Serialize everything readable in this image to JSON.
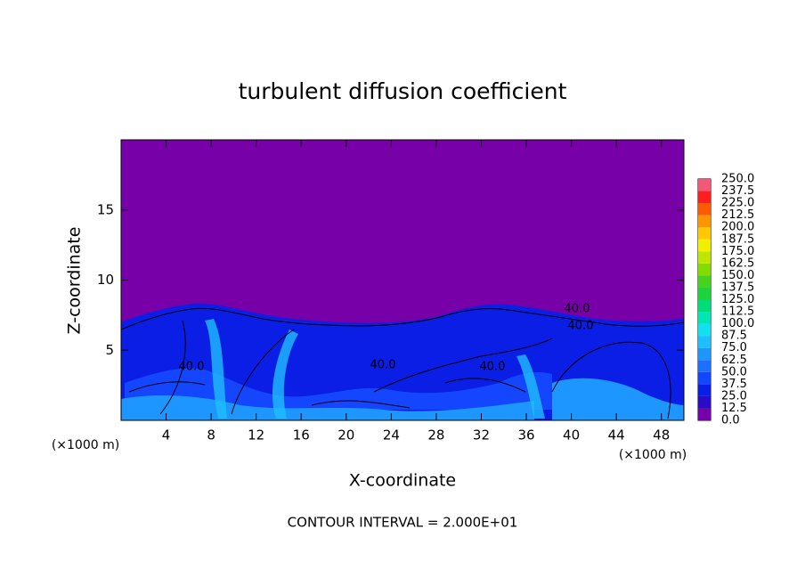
{
  "chart_data": {
    "type": "contour",
    "title": "turbulent diffusion coefficient",
    "xlabel": "X-coordinate",
    "ylabel": "Z-coordinate",
    "x_unit": "(×1000 m)",
    "footer": "CONTOUR INTERVAL = 2.000E+01",
    "xlim": [
      0,
      50
    ],
    "ylim": [
      0,
      20
    ],
    "xticks": [
      4,
      8,
      12,
      16,
      20,
      24,
      28,
      32,
      36,
      40,
      44,
      48
    ],
    "yticks": [
      5,
      10,
      15
    ],
    "contour_labels": [
      "40.0",
      "40.0",
      "40.0",
      "40.0",
      "40.0"
    ],
    "colorbar": {
      "levels": [
        {
          "value": 0,
          "label": "0.0"
        },
        {
          "value": 12.5,
          "label": "12.5"
        },
        {
          "value": 25,
          "label": "25.0"
        },
        {
          "value": 37.5,
          "label": "37.5"
        },
        {
          "value": 50,
          "label": "50.0"
        },
        {
          "value": 62.5,
          "label": "62.5"
        },
        {
          "value": 75,
          "label": "75.0"
        },
        {
          "value": 87.5,
          "label": "87.5"
        },
        {
          "value": 100,
          "label": "100.0"
        },
        {
          "value": 112.5,
          "label": "112.5"
        },
        {
          "value": 125,
          "label": "125.0"
        },
        {
          "value": 137.5,
          "label": "137.5"
        },
        {
          "value": 150,
          "label": "150.0"
        },
        {
          "value": 162.5,
          "label": "162.5"
        },
        {
          "value": 175,
          "label": "175.0"
        },
        {
          "value": 187.5,
          "label": "187.5"
        },
        {
          "value": 200,
          "label": "200.0"
        },
        {
          "value": 212.5,
          "label": "212.5"
        },
        {
          "value": 225,
          "label": "225.0"
        },
        {
          "value": 237.5,
          "label": "237.5"
        },
        {
          "value": 250,
          "label": "250.0"
        }
      ],
      "colors": [
        "#7800a8",
        "#2a0cc8",
        "#0a1ee6",
        "#1446ff",
        "#1e6eff",
        "#1e96ff",
        "#1ebeff",
        "#10e0f0",
        "#00e6b4",
        "#00dc78",
        "#1ed23c",
        "#46d21e",
        "#82dc00",
        "#bee600",
        "#f0f000",
        "#ffc800",
        "#ff9600",
        "#ff5a00",
        "#ff1e1e",
        "#f05a78"
      ]
    }
  }
}
